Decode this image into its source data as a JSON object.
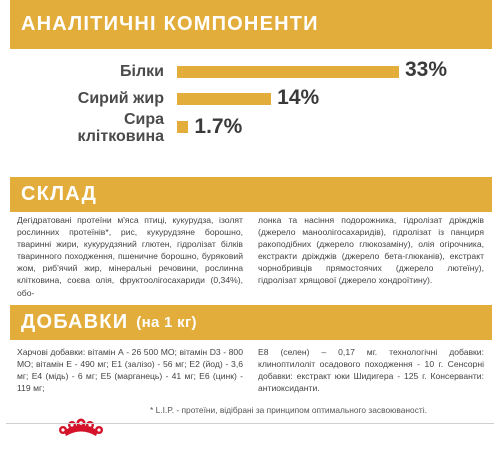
{
  "analytic": {
    "title": "АНАЛІТИЧНІ КОМПОНЕНТИ",
    "rows": [
      {
        "label": "Білки",
        "value_label": "33%",
        "percent": 33
      },
      {
        "label": "Сирий жир",
        "value_label": "14%",
        "percent": 14
      },
      {
        "label": "Сира клітковина",
        "label_line1": "Сира",
        "label_line2": "клітковина",
        "value_label": "1.7%",
        "percent": 1.7
      }
    ]
  },
  "composition": {
    "title": "СКЛАД",
    "col1": "Дегідратовані протеїни м'яса птиці, кукурудза, ізолят рослинних протеїнів*, рис, кукурудзяне борошно, тваринні жири, кукурудзяний глютен, гідролізат білків тваринного походження, пшеничне борошно, буряковий жом, риб'ячий жир, мінеральні речовини, рослинна клітковина, соєва олія, фруктоолігосахариди (0,34%), обо-",
    "col2": "лонка та насіння подорожника, гідролізат дріжджів (джерело маноолігосахаридів), гідролізат із панциря ракоподібних (джерело глюкозаміну), олія огірочника, екстракти дріжджів (джерело бета-глюканів), екстракт чорнобривців прямостоячих (джерело лютеїну), гідролізат хрящової (джерело хондроїтину)."
  },
  "additives": {
    "title": "ДОБАВКИ",
    "subtitle": "(на 1 кг)",
    "col1": "Харчові добавки: вітамін А - 26 500 МО; вітамін D3 - 800 МО; вітамін Е - 490 мг; E1 (залізо) - 56 мг; E2 (йод) - 3,6 мг; E4 (мідь) - 6 мг; E5 (марганець) - 41 мг; E6 (цинк) - 119 мг;",
    "col2": "E8 (селен) – 0,17 мг. технологічні добавки: клиноптилоліт осадового походження - 10 г. Сенсорні добавки: екстракт юки Шидигера - 125 г. Консерванти: антиоксиданти."
  },
  "footnote": "* L.I.P. - протеїни, відібрані за принципом оптимального засвоюваності.",
  "colors": {
    "accent": "#e3ad3c",
    "logo": "#d4132a"
  }
}
